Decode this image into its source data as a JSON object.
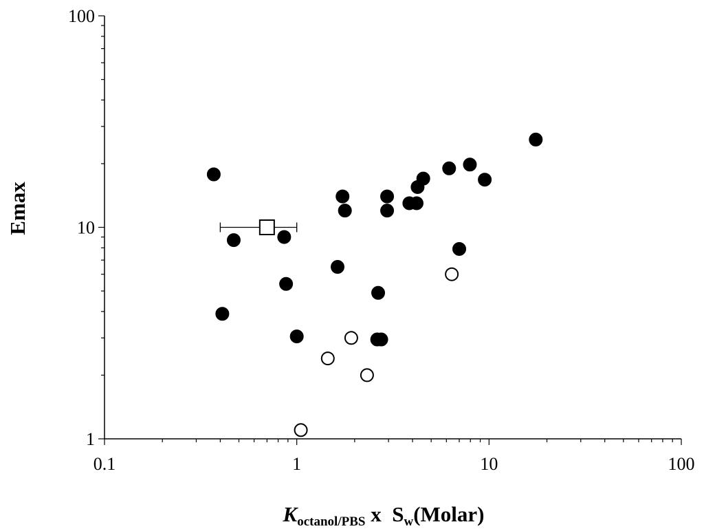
{
  "chart_data": {
    "type": "scatter",
    "title": "",
    "xlabel": {
      "main": "K",
      "sub": "octanol/PBS",
      "middle": " x  S",
      "sub2": "w",
      "tail": "(Molar)"
    },
    "ylabel": "Emax",
    "x_scale": "log",
    "y_scale": "log",
    "xlim": [
      0.1,
      100
    ],
    "ylim": [
      1,
      100
    ],
    "x_ticks": [
      {
        "value": 0.1,
        "label": "0.1"
      },
      {
        "value": 1,
        "label": "1"
      },
      {
        "value": 10,
        "label": "10"
      },
      {
        "value": 100,
        "label": "100"
      }
    ],
    "y_ticks": [
      {
        "value": 1,
        "label": "1"
      },
      {
        "value": 10,
        "label": "10"
      },
      {
        "value": 100,
        "label": "100"
      }
    ],
    "grid": false,
    "legend": "none",
    "series": [
      {
        "marker": "filled-circle",
        "color": "#000000",
        "points": [
          {
            "x": 0.37,
            "y": 17.8
          },
          {
            "x": 0.41,
            "y": 3.9
          },
          {
            "x": 0.47,
            "y": 8.7
          },
          {
            "x": 0.86,
            "y": 9.0
          },
          {
            "x": 0.88,
            "y": 5.4
          },
          {
            "x": 1.0,
            "y": 3.05
          },
          {
            "x": 1.63,
            "y": 6.5
          },
          {
            "x": 1.73,
            "y": 14.0
          },
          {
            "x": 1.78,
            "y": 12.0
          },
          {
            "x": 2.65,
            "y": 4.9
          },
          {
            "x": 2.62,
            "y": 2.95
          },
          {
            "x": 2.75,
            "y": 2.95
          },
          {
            "x": 2.95,
            "y": 14.0
          },
          {
            "x": 2.95,
            "y": 12.0
          },
          {
            "x": 3.85,
            "y": 13.0
          },
          {
            "x": 4.2,
            "y": 13.0
          },
          {
            "x": 4.25,
            "y": 15.5
          },
          {
            "x": 4.55,
            "y": 17.0
          },
          {
            "x": 6.2,
            "y": 19.0
          },
          {
            "x": 7.0,
            "y": 7.9
          },
          {
            "x": 7.95,
            "y": 19.8
          },
          {
            "x": 9.5,
            "y": 16.8
          },
          {
            "x": 17.5,
            "y": 26.0
          }
        ]
      },
      {
        "marker": "open-circle",
        "color": "#000000",
        "points": [
          {
            "x": 1.05,
            "y": 1.1
          },
          {
            "x": 1.45,
            "y": 2.4
          },
          {
            "x": 1.92,
            "y": 3.0
          },
          {
            "x": 2.32,
            "y": 2.0
          },
          {
            "x": 6.4,
            "y": 6.0
          }
        ]
      },
      {
        "marker": "open-square",
        "color": "#000000",
        "points": [
          {
            "x": 0.7,
            "y": 10.0,
            "x_err_low": 0.4,
            "x_err_high": 1.0
          }
        ]
      }
    ]
  }
}
